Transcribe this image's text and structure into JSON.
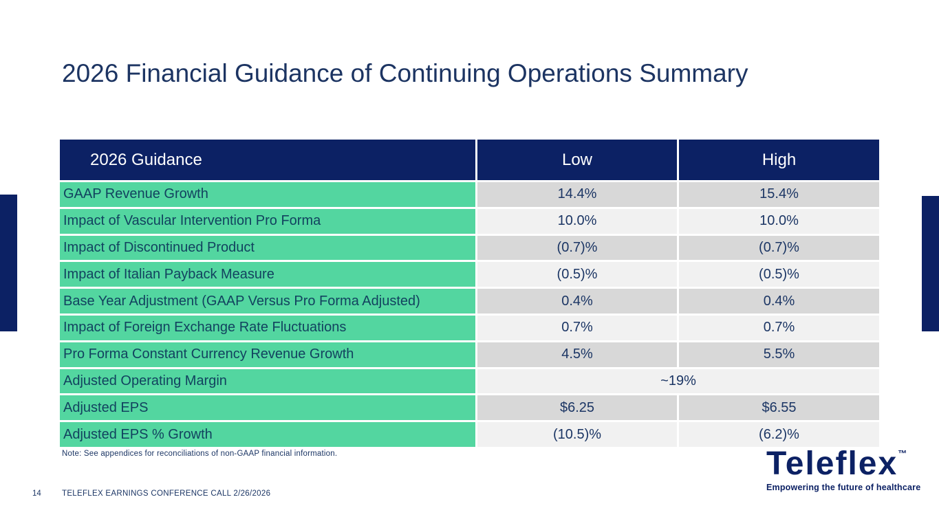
{
  "slide": {
    "title": "2026 Financial Guidance of Continuing Operations Summary",
    "note": "Note: See appendices for reconciliations of non-GAAP financial information.",
    "footer": {
      "page_number": "14",
      "text": "TELEFLEX EARNINGS CONFERENCE CALL 2/26/2026"
    },
    "logo": {
      "wordmark": "Teleflex",
      "trademark": "™",
      "tagline": "Empowering the future of healthcare"
    }
  },
  "table": {
    "headers": [
      "2026 Guidance",
      "Low",
      "High"
    ],
    "rows": [
      {
        "label": "GAAP Revenue Growth",
        "low": "14.4%",
        "high": "15.4%"
      },
      {
        "label": "Impact of Vascular Intervention Pro Forma",
        "low": "10.0%",
        "high": "10.0%"
      },
      {
        "label": "Impact of Discontinued Product",
        "low": "(0.7)%",
        "high": "(0.7)%"
      },
      {
        "label": "Impact of Italian Payback Measure",
        "low": "(0.5)%",
        "high": "(0.5)%"
      },
      {
        "label": "Base Year Adjustment (GAAP Versus Pro Forma Adjusted)",
        "low": "0.4%",
        "high": "0.4%"
      },
      {
        "label": "Impact of Foreign Exchange Rate Fluctuations",
        "low": "0.7%",
        "high": "0.7%"
      },
      {
        "label": "Pro Forma Constant Currency Revenue Growth",
        "low": "4.5%",
        "high": "5.5%"
      },
      {
        "label": "Adjusted Operating Margin",
        "merged": "~19%"
      },
      {
        "label": "Adjusted EPS",
        "low": "$6.25",
        "high": "$6.55"
      },
      {
        "label": "Adjusted EPS % Growth",
        "low": "(10.5)%",
        "high": "(6.2)%"
      }
    ]
  },
  "colors": {
    "navy": "#0c2164",
    "title_text": "#1c3462",
    "mint_green": "#53d6a0",
    "row_dark_gray": "#d8d8d8",
    "row_light_gray": "#f1f1f1",
    "label_text": "#12425f",
    "value_text": "#1b3564"
  }
}
